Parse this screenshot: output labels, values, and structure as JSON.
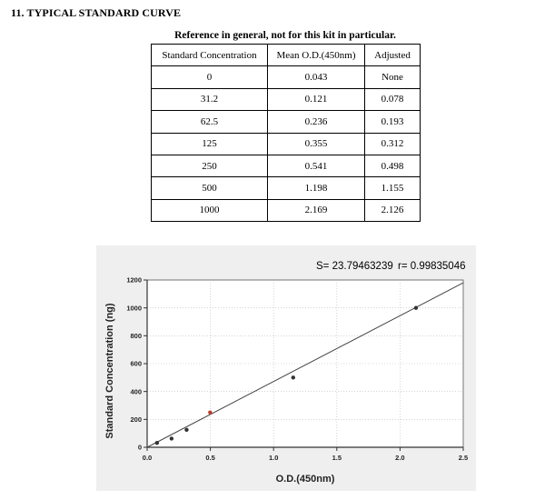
{
  "heading": "11. TYPICAL STANDARD CURVE",
  "table": {
    "caption": "Reference in general, not for this kit in particular.",
    "headers": [
      "Standard Concentration",
      "Mean O.D.(450nm)",
      "Adjusted"
    ],
    "rows": [
      [
        "0",
        "0.043",
        "None"
      ],
      [
        "31.2",
        "0.121",
        "0.078"
      ],
      [
        "62.5",
        "0.236",
        "0.193"
      ],
      [
        "125",
        "0.355",
        "0.312"
      ],
      [
        "250",
        "0.541",
        "0.498"
      ],
      [
        "500",
        "1.198",
        "1.155"
      ],
      [
        "1000",
        "2.169",
        "2.126"
      ]
    ]
  },
  "chart_data": {
    "type": "scatter",
    "xlabel": "O.D.(450nm)",
    "ylabel": "Standard Concentration (ng)",
    "xlim": [
      0,
      2.5
    ],
    "ylim": [
      0,
      1200
    ],
    "x_ticks": [
      "0.0",
      "0.5",
      "1.0",
      "1.5",
      "2.0",
      "2.5"
    ],
    "y_ticks": [
      "0",
      "200",
      "400",
      "600",
      "800",
      "1000",
      "1200"
    ],
    "equation": {
      "s": "S= 23.79463239",
      "r": "r= 0.99835046"
    },
    "points": [
      {
        "x": 0.078,
        "y": 31.2
      },
      {
        "x": 0.193,
        "y": 62.5
      },
      {
        "x": 0.312,
        "y": 125
      },
      {
        "x": 0.498,
        "y": 250,
        "color": "#c0392b"
      },
      {
        "x": 1.155,
        "y": 500
      },
      {
        "x": 2.126,
        "y": 1000
      }
    ],
    "fit_line": [
      {
        "x": 0.0,
        "y": 0
      },
      {
        "x": 2.5,
        "y": 1180
      }
    ],
    "grid": true,
    "colors": {
      "point": "#333333",
      "line": "#444444",
      "background": "#efefef"
    }
  }
}
